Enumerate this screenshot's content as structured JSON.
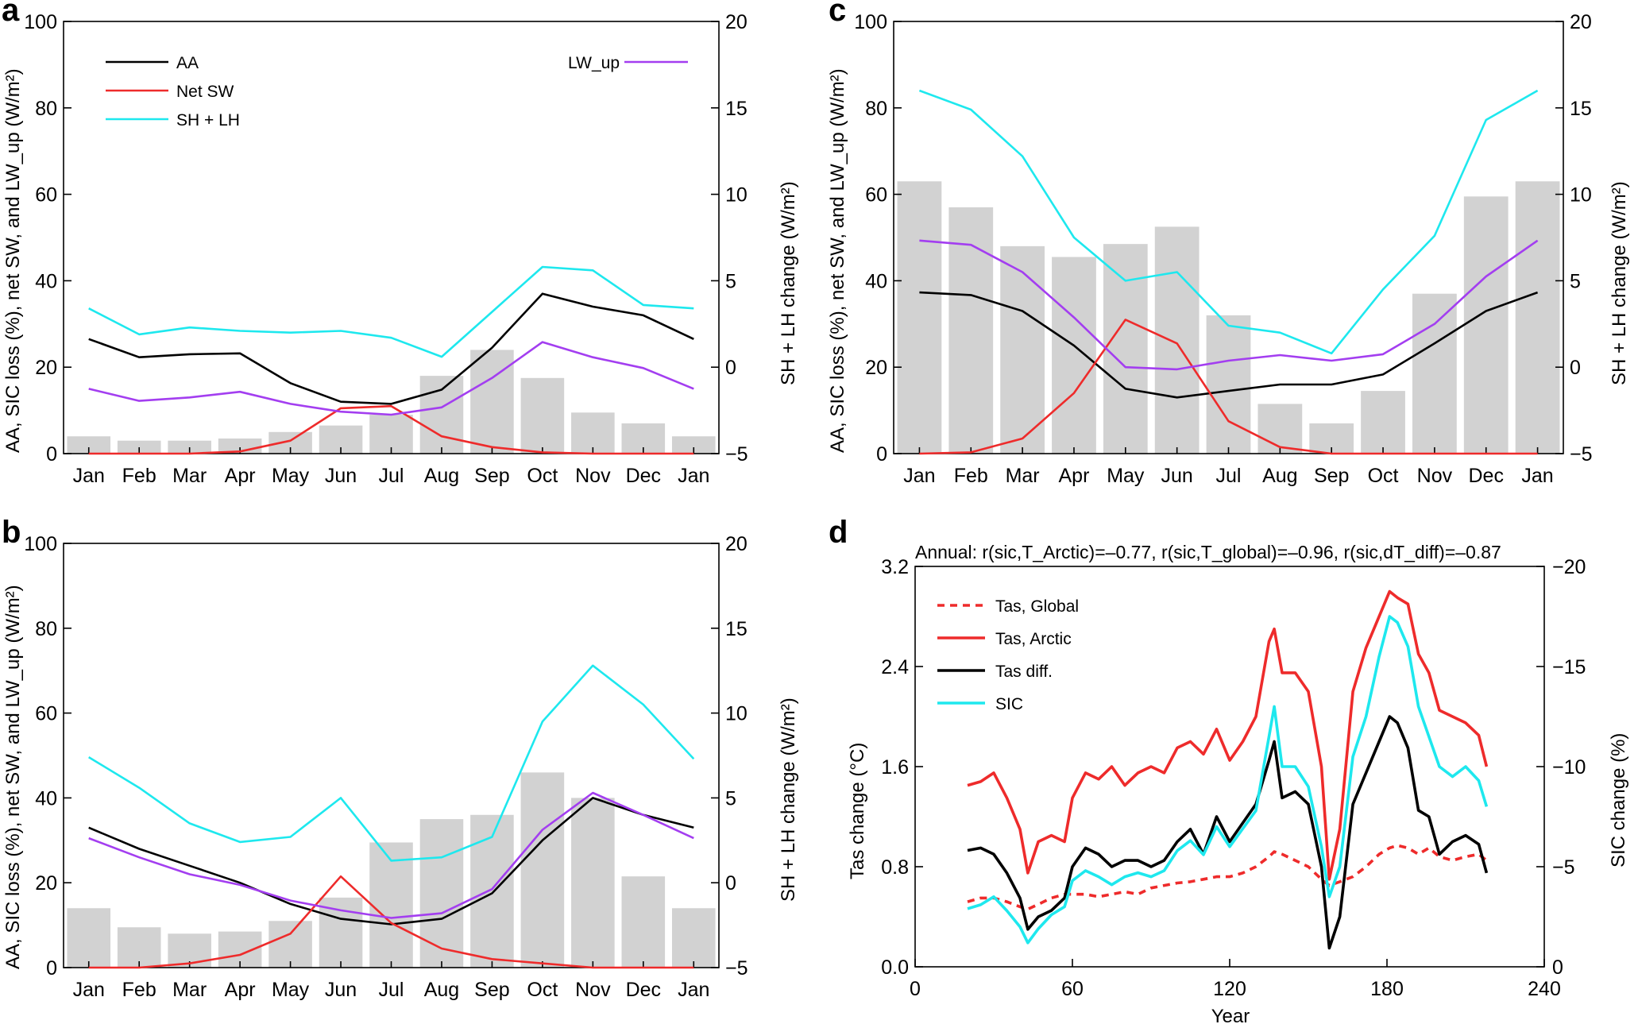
{
  "panels": {
    "a": {
      "label": "a"
    },
    "b": {
      "label": "b"
    },
    "c": {
      "label": "c"
    },
    "d": {
      "label": "d"
    }
  },
  "labels": {
    "monthly_ylabel_left": "AA, SIC loss (%), net SW, and LW_up (W/m²)",
    "monthly_ylabel_right": "SH + LH change (W/m²)",
    "d_ylabel_left": "Tas change (°C)",
    "d_ylabel_right": "SIC change (%)",
    "d_xlabel": "Year"
  },
  "colors": {
    "aa": "#000000",
    "net_sw": "#ee2b2b",
    "shlh": "#1ee8ee",
    "lw_up": "#a33ef0",
    "bar": "#d2d2d2",
    "tas_global": "#ee2b2b",
    "tas_arctic": "#ee2b2b",
    "tas_diff": "#000000",
    "sic": "#1ee8ee"
  },
  "chart_data": [
    {
      "panel": "a",
      "type": "bar+line",
      "categories": [
        "Jan",
        "Feb",
        "Mar",
        "Apr",
        "May",
        "Jun",
        "Jul",
        "Aug",
        "Sep",
        "Oct",
        "Nov",
        "Dec",
        "Jan"
      ],
      "ylim_left": [
        0,
        100
      ],
      "yticks_left": [
        "0",
        "20",
        "40",
        "60",
        "80",
        "100"
      ],
      "ylim_right": [
        -5,
        20
      ],
      "yticks_right": [
        "−5",
        "0",
        "5",
        "10",
        "15",
        "20"
      ],
      "bars": {
        "name": "SIC loss",
        "values": [
          4,
          3,
          3,
          3.5,
          5,
          6.5,
          9,
          18,
          24,
          17.5,
          9.5,
          7,
          4
        ]
      },
      "series": [
        {
          "name": "AA",
          "key": "aa",
          "axis": "left",
          "values": [
            26.5,
            22.3,
            23,
            23.2,
            16.3,
            12,
            11.5,
            14.8,
            24.5,
            37,
            34,
            32,
            26.5
          ]
        },
        {
          "name": "Net SW",
          "key": "net_sw",
          "axis": "left",
          "values": [
            0,
            0,
            0,
            0.5,
            3,
            10.5,
            11,
            4,
            1.5,
            0.3,
            0,
            0,
            0
          ]
        },
        {
          "name": "SH + LH",
          "key": "shlh",
          "axis": "right",
          "values": [
            3.4,
            1.9,
            2.3,
            2.1,
            2.0,
            2.1,
            1.7,
            0.6,
            3.2,
            5.8,
            5.6,
            3.6,
            3.4
          ]
        },
        {
          "name": "LW_up",
          "key": "lw_up",
          "axis": "left",
          "values": [
            15,
            12.2,
            13,
            14.3,
            11.5,
            9.7,
            9,
            10.7,
            17.5,
            25.8,
            22.3,
            19.8,
            15
          ]
        }
      ],
      "legend": {
        "aa": "AA",
        "net_sw": "Net SW",
        "shlh": "SH + LH",
        "lw_up": "LW_up"
      }
    },
    {
      "panel": "b",
      "type": "bar+line",
      "categories": [
        "Jan",
        "Feb",
        "Mar",
        "Apr",
        "May",
        "Jun",
        "Jul",
        "Aug",
        "Sep",
        "Oct",
        "Nov",
        "Dec",
        "Jan"
      ],
      "ylim_left": [
        0,
        100
      ],
      "yticks_left": [
        "0",
        "20",
        "40",
        "60",
        "80",
        "100"
      ],
      "ylim_right": [
        -5,
        20
      ],
      "yticks_right": [
        "−5",
        "0",
        "5",
        "10",
        "15",
        "20"
      ],
      "bars": {
        "name": "SIC loss",
        "values": [
          14,
          9.5,
          8,
          8.5,
          11,
          16.5,
          29.5,
          35,
          36,
          46,
          40,
          21.5,
          14
        ]
      },
      "series": [
        {
          "name": "AA",
          "key": "aa",
          "axis": "left",
          "values": [
            33,
            28,
            24,
            20,
            15,
            11.5,
            10.2,
            11.5,
            17.5,
            30,
            40,
            36,
            33
          ]
        },
        {
          "name": "Net SW",
          "key": "net_sw",
          "axis": "left",
          "values": [
            0,
            0,
            1,
            3,
            8,
            21.5,
            10.5,
            4.5,
            2,
            1,
            0,
            0,
            0
          ]
        },
        {
          "name": "SH + LH",
          "key": "shlh",
          "axis": "right",
          "values": [
            7.4,
            5.6,
            3.5,
            2.4,
            2.7,
            5.0,
            1.3,
            1.5,
            2.7,
            9.5,
            12.8,
            10.5,
            7.3
          ]
        },
        {
          "name": "LW_up",
          "key": "lw_up",
          "axis": "left",
          "values": [
            30.5,
            26,
            22,
            19.5,
            15.8,
            13.5,
            11.7,
            12.8,
            18.5,
            32.5,
            41.2,
            36,
            30.5
          ]
        }
      ]
    },
    {
      "panel": "c",
      "type": "bar+line",
      "categories": [
        "Jan",
        "Feb",
        "Mar",
        "Apr",
        "May",
        "Jun",
        "Jul",
        "Aug",
        "Sep",
        "Oct",
        "Nov",
        "Dec",
        "Jan"
      ],
      "ylim_left": [
        0,
        100
      ],
      "yticks_left": [
        "0",
        "20",
        "40",
        "60",
        "80",
        "100"
      ],
      "ylim_right": [
        -5,
        20
      ],
      "yticks_right": [
        "−5",
        "0",
        "5",
        "10",
        "15",
        "20"
      ],
      "bars": {
        "name": "SIC loss",
        "values": [
          63,
          57,
          48,
          45.5,
          48.5,
          52.5,
          32,
          11.5,
          7,
          14.5,
          37,
          59.5,
          63
        ]
      },
      "series": [
        {
          "name": "AA",
          "key": "aa",
          "axis": "left",
          "values": [
            37.3,
            36.7,
            33,
            25,
            15,
            13,
            14.5,
            16,
            16,
            18.3,
            25.5,
            33,
            37.3
          ]
        },
        {
          "name": "Net SW",
          "key": "net_sw",
          "axis": "left",
          "values": [
            0,
            0.3,
            3.5,
            14,
            31,
            25.5,
            7.5,
            1.5,
            0,
            0,
            0,
            0,
            0
          ]
        },
        {
          "name": "SH + LH",
          "key": "shlh",
          "axis": "right",
          "values": [
            16,
            14.9,
            12.2,
            7.5,
            5.0,
            5.5,
            2.4,
            2.0,
            0.8,
            4.5,
            7.6,
            14.3,
            16
          ]
        },
        {
          "name": "LW_up",
          "key": "lw_up",
          "axis": "left",
          "values": [
            49.3,
            48.3,
            42,
            31.5,
            20,
            19.5,
            21.5,
            22.8,
            21.5,
            23,
            30,
            41,
            49.3
          ]
        }
      ]
    },
    {
      "panel": "d",
      "type": "line",
      "title": "Annual: r(sic,T_Arctic)=–0.77, r(sic,T_global)=–0.96, r(sic,dT_diff)=–0.87",
      "xlabel": "Year",
      "ylabel": "Tas change (°C)",
      "ylabel_right": "SIC change (%)",
      "xlim": [
        0,
        240
      ],
      "xticks": [
        "0",
        "60",
        "120",
        "180",
        "240"
      ],
      "ylim": [
        0,
        3.2
      ],
      "yticks": [
        "0.0",
        "0.8",
        "1.6",
        "2.4",
        "3.2"
      ],
      "ylim_right": [
        0,
        -20
      ],
      "yticks_right": [
        "0",
        "−5",
        "−10",
        "−15",
        "−20"
      ],
      "x": [
        20,
        25,
        30,
        35,
        40,
        43,
        47,
        52,
        57,
        60,
        65,
        70,
        75,
        80,
        85,
        90,
        95,
        100,
        105,
        110,
        115,
        120,
        125,
        130,
        135,
        137,
        140,
        145,
        150,
        155,
        158,
        162,
        167,
        172,
        177,
        181,
        184,
        188,
        192,
        196,
        200,
        205,
        210,
        215,
        218
      ],
      "series": [
        {
          "name": "Tas, Global",
          "key": "tas_global",
          "style": "dashed",
          "axis": "left",
          "values": [
            0.52,
            0.55,
            0.55,
            0.52,
            0.48,
            0.46,
            0.5,
            0.55,
            0.58,
            0.58,
            0.58,
            0.56,
            0.58,
            0.6,
            0.58,
            0.63,
            0.65,
            0.67,
            0.68,
            0.7,
            0.72,
            0.72,
            0.75,
            0.8,
            0.88,
            0.92,
            0.9,
            0.85,
            0.8,
            0.7,
            0.65,
            0.68,
            0.72,
            0.8,
            0.9,
            0.95,
            0.97,
            0.95,
            0.9,
            0.95,
            0.88,
            0.85,
            0.88,
            0.9,
            0.85
          ]
        },
        {
          "name": "Tas, Arctic",
          "key": "tas_arctic",
          "style": "solid",
          "axis": "left",
          "values": [
            1.45,
            1.48,
            1.55,
            1.35,
            1.1,
            0.75,
            1.0,
            1.05,
            1.0,
            1.35,
            1.55,
            1.5,
            1.6,
            1.45,
            1.55,
            1.6,
            1.55,
            1.75,
            1.8,
            1.7,
            1.9,
            1.65,
            1.8,
            2.0,
            2.6,
            2.7,
            2.35,
            2.35,
            2.2,
            1.6,
            0.7,
            1.1,
            2.2,
            2.55,
            2.8,
            3.0,
            2.95,
            2.9,
            2.5,
            2.35,
            2.05,
            2.0,
            1.95,
            1.85,
            1.6
          ]
        },
        {
          "name": "Tas diff.",
          "key": "tas_diff",
          "style": "solid",
          "axis": "left",
          "values": [
            0.93,
            0.95,
            0.9,
            0.75,
            0.55,
            0.3,
            0.4,
            0.45,
            0.55,
            0.8,
            0.95,
            0.9,
            0.8,
            0.85,
            0.85,
            0.8,
            0.85,
            1.0,
            1.1,
            0.9,
            1.2,
            1.0,
            1.15,
            1.3,
            1.65,
            1.8,
            1.35,
            1.4,
            1.3,
            0.8,
            0.15,
            0.4,
            1.3,
            1.55,
            1.8,
            2.0,
            1.95,
            1.75,
            1.25,
            1.2,
            0.9,
            1.0,
            1.05,
            0.98,
            0.75
          ]
        },
        {
          "name": "SIC",
          "key": "sic",
          "style": "solid",
          "axis": "right",
          "values": [
            -2.9,
            -3.1,
            -3.5,
            -2.8,
            -2.0,
            -1.2,
            -1.9,
            -2.6,
            -3.0,
            -4.3,
            -4.8,
            -4.5,
            -4.1,
            -4.5,
            -4.7,
            -4.5,
            -4.8,
            -5.8,
            -6.3,
            -5.6,
            -7.0,
            -6.0,
            -6.9,
            -7.8,
            -11.5,
            -13.0,
            -10.0,
            -10.0,
            -9.0,
            -6.0,
            -3.5,
            -5.0,
            -10.5,
            -12.5,
            -15.5,
            -17.5,
            -17.2,
            -16.0,
            -13.0,
            -11.5,
            -10.0,
            -9.5,
            -10.0,
            -9.3,
            -8.0
          ]
        }
      ],
      "legend": {
        "tas_global": "Tas, Global",
        "tas_arctic": "Tas, Arctic",
        "tas_diff": "Tas diff.",
        "sic": "SIC"
      }
    }
  ]
}
